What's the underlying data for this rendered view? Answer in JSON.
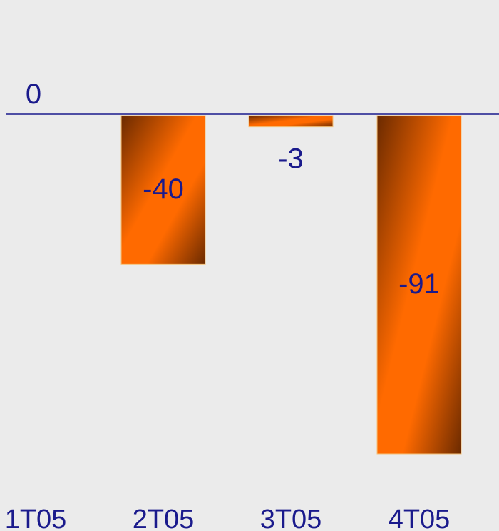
{
  "chart_data": {
    "type": "bar",
    "categories": [
      "1T05",
      "2T05",
      "3T05",
      "4T05"
    ],
    "values": [
      0,
      -40,
      -3,
      -91
    ],
    "data_labels": [
      "0",
      "-40",
      "-3",
      "-91"
    ],
    "ylim": [
      -91,
      0
    ],
    "grid": false,
    "legend": "none"
  },
  "colors": {
    "background": "#ebebeb",
    "axis": "#1a1a8c",
    "label_text": "#1a1a8c",
    "category_text": "#1a1a8c",
    "bar_light": "#ff6a00",
    "bar_dark": "#6b2a00"
  }
}
